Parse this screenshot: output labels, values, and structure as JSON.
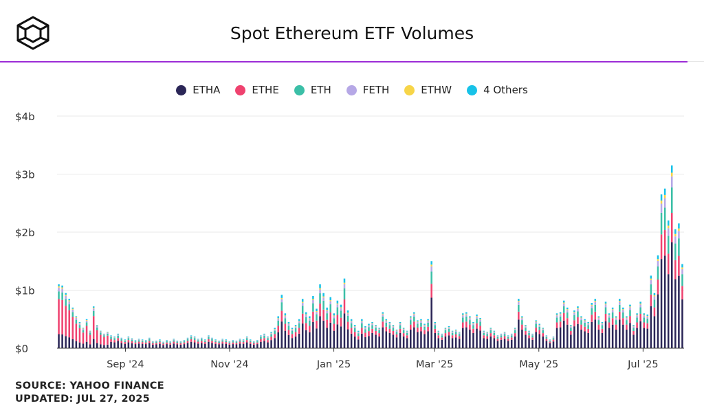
{
  "header": {
    "logo": "cube-logo",
    "title": "Spot Ethereum ETF Volumes"
  },
  "footer": {
    "source": "SOURCE: YAHOO FINANCE",
    "updated": "UPDATED: JUL 27, 2025"
  },
  "colors": {
    "accent_line": "#9b2bd6",
    "gridline": "#e8e8e8",
    "axis": "#333333"
  },
  "chart_data": {
    "type": "bar",
    "stacked": true,
    "title": "Spot Ethereum ETF Volumes",
    "xlabel": "",
    "ylabel": "",
    "ylim": [
      0,
      4
    ],
    "y_unit": "billions USD",
    "y_ticks": [
      0,
      1,
      2,
      3,
      4
    ],
    "y_tick_labels": [
      "$0",
      "$1b",
      "$2b",
      "$3b",
      "$4b"
    ],
    "x_tick_labels": [
      "Sep '24",
      "Nov '24",
      "Jan '25",
      "Mar '25",
      "May '25",
      "Jul '25"
    ],
    "legend_position": "top",
    "grid": true,
    "series": [
      {
        "name": "ETHA",
        "color": "#2b2657"
      },
      {
        "name": "ETHE",
        "color": "#ef426f"
      },
      {
        "name": "ETH",
        "color": "#3bbfa7"
      },
      {
        "name": "FETH",
        "color": "#b6a8e6"
      },
      {
        "name": "ETHW",
        "color": "#f7d548"
      },
      {
        "name": "4 Others",
        "color": "#17c2e8"
      }
    ],
    "totals_approx": [
      1.1,
      1.08,
      0.95,
      0.85,
      0.7,
      0.55,
      0.45,
      0.35,
      0.5,
      0.3,
      0.72,
      0.4,
      0.3,
      0.25,
      0.28,
      0.22,
      0.2,
      0.25,
      0.18,
      0.15,
      0.2,
      0.17,
      0.14,
      0.16,
      0.15,
      0.14,
      0.18,
      0.12,
      0.13,
      0.15,
      0.11,
      0.14,
      0.12,
      0.16,
      0.13,
      0.12,
      0.14,
      0.18,
      0.22,
      0.2,
      0.16,
      0.18,
      0.15,
      0.22,
      0.18,
      0.15,
      0.13,
      0.16,
      0.15,
      0.12,
      0.14,
      0.13,
      0.16,
      0.15,
      0.2,
      0.15,
      0.12,
      0.14,
      0.22,
      0.25,
      0.2,
      0.28,
      0.35,
      0.55,
      0.92,
      0.6,
      0.45,
      0.35,
      0.4,
      0.5,
      0.85,
      0.62,
      0.55,
      0.9,
      0.68,
      1.1,
      0.95,
      0.7,
      0.88,
      0.6,
      0.82,
      0.75,
      1.2,
      0.65,
      0.5,
      0.4,
      0.3,
      0.5,
      0.38,
      0.42,
      0.45,
      0.4,
      0.35,
      0.62,
      0.5,
      0.45,
      0.4,
      0.32,
      0.45,
      0.35,
      0.3,
      0.55,
      0.62,
      0.48,
      0.5,
      0.42,
      0.5,
      1.5,
      0.45,
      0.3,
      0.25,
      0.35,
      0.38,
      0.3,
      0.32,
      0.28,
      0.6,
      0.62,
      0.55,
      0.45,
      0.58,
      0.52,
      0.3,
      0.28,
      0.35,
      0.3,
      0.22,
      0.25,
      0.28,
      0.22,
      0.25,
      0.35,
      0.85,
      0.55,
      0.4,
      0.3,
      0.25,
      0.48,
      0.42,
      0.35,
      0.22,
      0.15,
      0.2,
      0.6,
      0.62,
      0.82,
      0.7,
      0.4,
      0.65,
      0.72,
      0.55,
      0.5,
      0.45,
      0.78,
      0.85,
      0.55,
      0.45,
      0.8,
      0.6,
      0.7,
      0.55,
      0.85,
      0.7,
      0.55,
      0.75,
      0.4,
      0.6,
      0.8,
      0.6,
      0.58,
      1.25,
      0.95,
      1.6,
      2.65,
      2.75,
      2.2,
      3.15,
      2.05,
      2.15,
      1.45
    ]
  }
}
